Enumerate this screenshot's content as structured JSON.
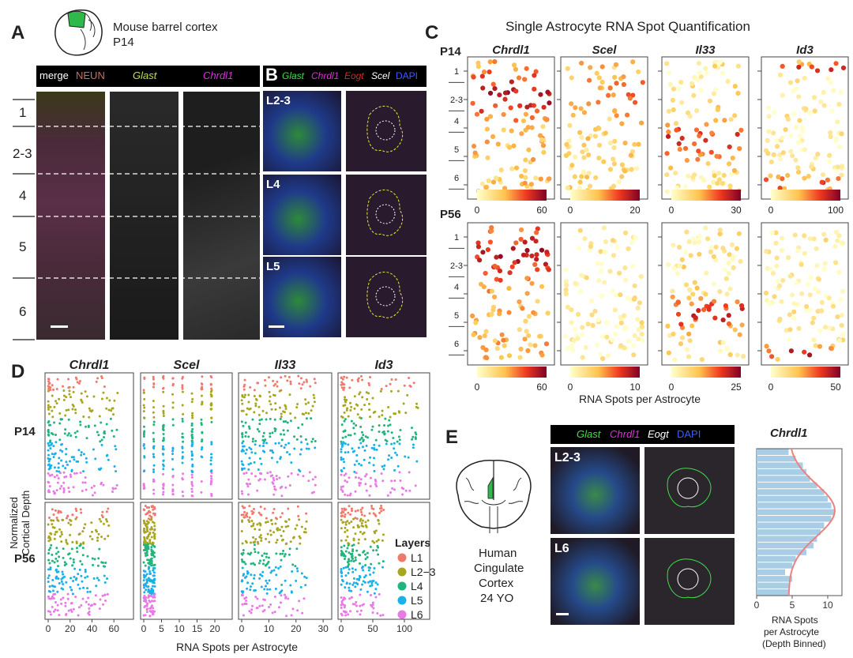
{
  "panel_a": {
    "letter": "A",
    "region_line1": "Mouse barrel cortex",
    "region_line2": "P14",
    "stain_bar": [
      {
        "text": "merge",
        "color": "#ffffff",
        "italic": false
      },
      {
        "text": "NEUN",
        "color": "#d46a5a",
        "italic": false
      },
      {
        "text": "Glast",
        "color": "#b8e04a",
        "italic": true
      },
      {
        "text": "Chrdl1",
        "color": "#e02ce0",
        "italic": true
      }
    ],
    "layers": [
      "1",
      "2-3",
      "4",
      "5",
      "6"
    ]
  },
  "panel_b": {
    "letter": "B",
    "stain_bar": [
      {
        "text": "Glast",
        "color": "#3de04a"
      },
      {
        "text": "Chrdl1",
        "color": "#e02ce0"
      },
      {
        "text": "Eogt",
        "color": "#e02020"
      },
      {
        "text": "Scel",
        "color": "#ffffff"
      },
      {
        "text": "DAPI",
        "color": "#3a5cff"
      }
    ],
    "rows": [
      "L2-3",
      "L4",
      "L5"
    ]
  },
  "panel_c": {
    "letter": "C",
    "title": "Single Astrocyte RNA Spot Quantification",
    "genes": [
      "Chrdl1",
      "Scel",
      "Il33",
      "Id3"
    ],
    "ages": [
      "P14",
      "P56"
    ],
    "layer_ticks": [
      "1",
      "2-3",
      "4",
      "5",
      "6"
    ],
    "colorbar_p14": [
      [
        "0",
        "60"
      ],
      [
        "0",
        "20"
      ],
      [
        "0",
        "30"
      ],
      [
        "0",
        "100"
      ]
    ],
    "colorbar_p56": [
      [
        "0",
        "60"
      ],
      [
        "0",
        "10"
      ],
      [
        "0",
        "25"
      ],
      [
        "0",
        "50"
      ]
    ],
    "xlabel": "RNA Spots per Astrocyte"
  },
  "panel_d": {
    "letter": "D",
    "genes": [
      "Chrdl1",
      "Scel",
      "Il33",
      "Id3"
    ],
    "ages": [
      "P14",
      "P56"
    ],
    "ylabel_line1": "Normalized",
    "ylabel_line2": "Cortical Depth",
    "xlabel": "RNA Spots per Astrocyte",
    "legend_title": "Layers",
    "legend": [
      {
        "label": "L1",
        "color": "#f0796e"
      },
      {
        "label": "L2−3",
        "color": "#a8a621"
      },
      {
        "label": "L4",
        "color": "#21b57d"
      },
      {
        "label": "L5",
        "color": "#1ab0e8"
      },
      {
        "label": "L6",
        "color": "#e879e6"
      }
    ]
  },
  "panel_e": {
    "letter": "E",
    "stain_bar": [
      {
        "text": "Glast",
        "color": "#3de04a"
      },
      {
        "text": "Chrdl1",
        "color": "#e02ce0"
      },
      {
        "text": "Eogt",
        "color": "#ffffff"
      },
      {
        "text": "DAPI",
        "color": "#3a5cff"
      }
    ],
    "rows": [
      "L2-3",
      "L6"
    ],
    "human_line1": "Human",
    "human_line2": "Cingulate",
    "human_line3": "Cortex",
    "human_line4": "24 YO"
  },
  "chart_data": [
    {
      "type": "scatter",
      "id": "D",
      "title": "",
      "xlabel": "RNA Spots per Astrocyte",
      "ylabel": "Normalized Cortical Depth",
      "facets": [
        {
          "gene": "Chrdl1",
          "age": "P14",
          "x_ticks": [],
          "xlim": [
            0,
            75
          ]
        },
        {
          "gene": "Scel",
          "age": "P14",
          "x_ticks": [],
          "xlim": [
            0,
            24
          ]
        },
        {
          "gene": "Il33",
          "age": "P14",
          "x_ticks": [],
          "xlim": [
            0,
            32
          ]
        },
        {
          "gene": "Id3",
          "age": "P14",
          "x_ticks": [],
          "xlim": [
            0,
            135
          ]
        },
        {
          "gene": "Chrdl1",
          "age": "P56",
          "x_ticks": [
            "0",
            "20",
            "40",
            "60"
          ],
          "xlim": [
            0,
            75
          ]
        },
        {
          "gene": "Scel",
          "age": "P56",
          "x_ticks": [
            "0",
            "5",
            "10",
            "15",
            "20"
          ],
          "xlim": [
            0,
            24
          ]
        },
        {
          "gene": "Il33",
          "age": "P56",
          "x_ticks": [
            "0",
            "10",
            "20",
            "30"
          ],
          "xlim": [
            0,
            32
          ]
        },
        {
          "gene": "Id3",
          "age": "P56",
          "x_ticks": [
            "0",
            "50",
            "100"
          ],
          "xlim": [
            0,
            135
          ]
        }
      ],
      "series": [
        {
          "name": "L1"
        },
        {
          "name": "L2−3"
        },
        {
          "name": "L4"
        },
        {
          "name": "L5"
        },
        {
          "name": "L6"
        }
      ],
      "legend_position": "right"
    },
    {
      "type": "bar",
      "id": "E",
      "title": "Chrdl1",
      "xlabel": "RNA Spots per Astrocyte (Depth Binned)",
      "x_ticks": [
        "0",
        "5",
        "10"
      ],
      "xlim": [
        0,
        12
      ],
      "orientation": "horizontal",
      "values": [
        4.5,
        5.5,
        6.5,
        7.0,
        7.5,
        8.5,
        9.5,
        10.0,
        10.5,
        11.0,
        10.5,
        9.5,
        9.0,
        8.5,
        8.0,
        7.0,
        5.5,
        5.0,
        4.0,
        5.0,
        4.5,
        4.5
      ]
    }
  ],
  "panel_e_chart": {
    "title": "Chrdl1",
    "xlabel_line1": "RNA Spots",
    "xlabel_line2": "per Astrocyte",
    "xlabel_line3": "(Depth Binned)",
    "ticks": [
      "0",
      "5",
      "10"
    ]
  },
  "colors": {
    "heat_low": "#ffffcc",
    "heat_mid": "#f03b20",
    "heat_high": "#800026",
    "hist_bar": "#a8cde4",
    "fit_line": "#ef8080"
  }
}
